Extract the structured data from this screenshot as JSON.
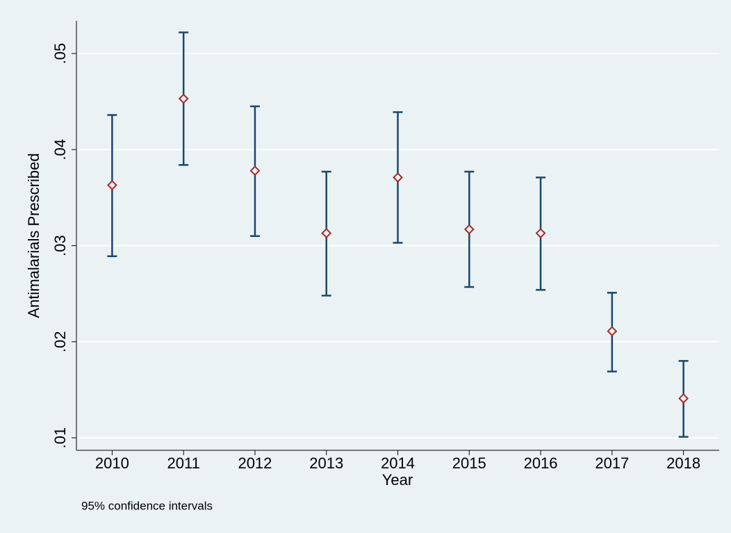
{
  "chart_data": {
    "type": "errorbar",
    "x_label": "Year",
    "y_label": "Antimalarials Prescribed",
    "note": "95% confidence intervals",
    "x": [
      2010,
      2011,
      2012,
      2013,
      2014,
      2015,
      2016,
      2017,
      2018
    ],
    "values": [
      0.0363,
      0.0453,
      0.0378,
      0.0313,
      0.0371,
      0.0317,
      0.0313,
      0.0211,
      0.0141
    ],
    "lower": [
      0.0289,
      0.0384,
      0.031,
      0.0248,
      0.0303,
      0.0257,
      0.0254,
      0.0169,
      0.0101
    ],
    "upper": [
      0.0436,
      0.0522,
      0.0445,
      0.0377,
      0.0439,
      0.0377,
      0.0371,
      0.0251,
      0.018
    ],
    "marker_color": "#a52a2a",
    "bar_color": "#1a476f",
    "xlim": [
      2009.5,
      2018.5
    ],
    "xticks": [
      2010,
      2011,
      2012,
      2013,
      2014,
      2015,
      2016,
      2017,
      2018
    ],
    "ylim": [
      0.0087,
      0.0534
    ],
    "yticks": [
      {
        "value": 0.01,
        "label": ".01"
      },
      {
        "value": 0.02,
        "label": ".02"
      },
      {
        "value": 0.03,
        "label": ".03"
      },
      {
        "value": 0.04,
        "label": ".04"
      },
      {
        "value": 0.05,
        "label": ".05"
      }
    ],
    "grid": true
  }
}
